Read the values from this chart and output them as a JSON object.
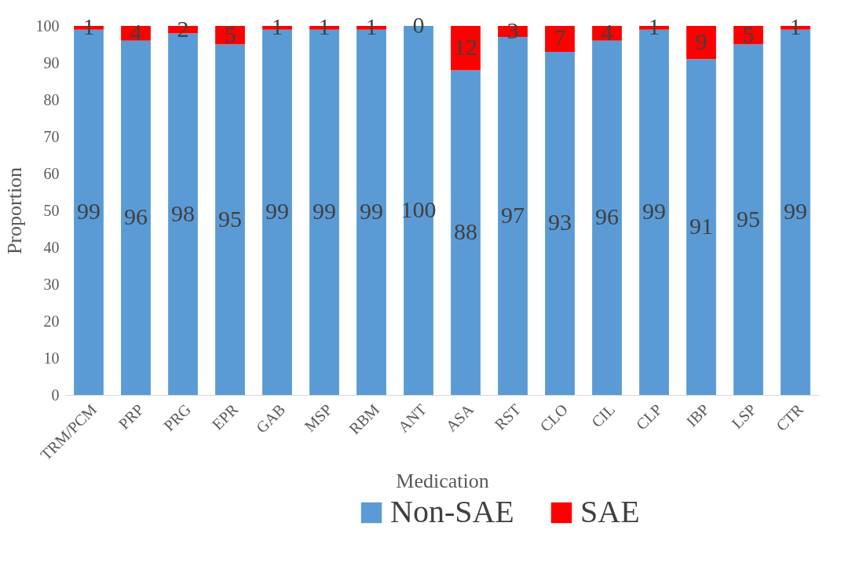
{
  "chart_data": {
    "type": "bar",
    "stacked": true,
    "xlabel": "Medication",
    "ylabel": "Proportion",
    "categories": [
      "TRM/PCM",
      "PRP",
      "PRG",
      "EPR",
      "GAB",
      "MSP",
      "RBM",
      "ANT",
      "ASA",
      "RST",
      "CLO",
      "CIL",
      "CLP",
      "IBP",
      "LSP",
      "CTR"
    ],
    "series": [
      {
        "name": "Non-SAE",
        "color": "#5b9bd5",
        "values": [
          99,
          96,
          98,
          95,
          99,
          99,
          99,
          100,
          88,
          97,
          93,
          96,
          99,
          91,
          95,
          99
        ]
      },
      {
        "name": "SAE",
        "color": "#ff0000",
        "values": [
          1,
          4,
          2,
          5,
          1,
          1,
          1,
          0,
          12,
          3,
          7,
          4,
          1,
          9,
          5,
          1
        ]
      }
    ],
    "ylim": [
      0,
      100
    ],
    "yticks": [
      0,
      10,
      20,
      30,
      40,
      50,
      60,
      70,
      80,
      90,
      100
    ],
    "data_labels": true,
    "legend": "bottom",
    "grid": false
  }
}
